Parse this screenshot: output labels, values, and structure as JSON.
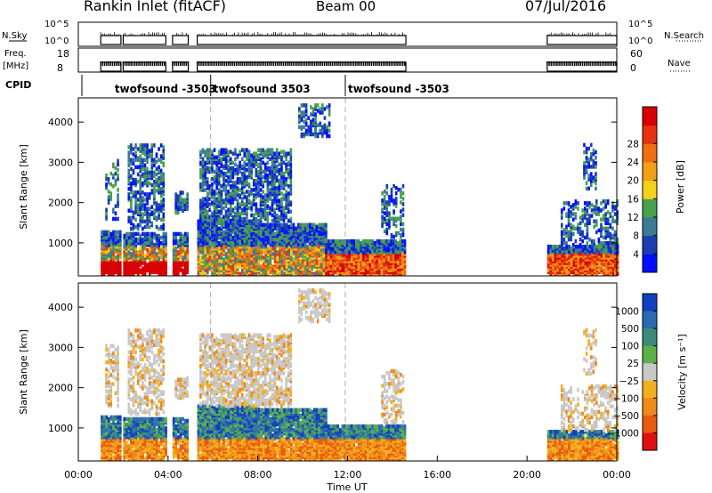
{
  "header": {
    "site": "Rankin Inlet (fitACF)",
    "beam": "Beam 00",
    "date": "07/Jul/2016"
  },
  "status_panels": {
    "nsky_label": "N.Sky",
    "nsky_ticks": [
      "10^5",
      "10^0"
    ],
    "nsearch_label": "N.Search",
    "nsearch_ticks": [
      "10^5",
      "10^0"
    ],
    "freq_label": "Freq.",
    "freq_unit": "[MHz]",
    "freq_ticks": [
      "18",
      "8"
    ],
    "nave_label": "Nave",
    "nave_ticks": [
      "60",
      "0"
    ],
    "cpid_label": "CPID",
    "cpid_segments": [
      {
        "start_hour": 1.5,
        "end_hour": 5.9,
        "label": "twofsound -3503"
      },
      {
        "start_hour": 5.9,
        "end_hour": 11.9,
        "label": "twofsound 3503"
      },
      {
        "start_hour": 11.9,
        "end_hour": 24.0,
        "label": "twofsound -3503"
      }
    ]
  },
  "chart_data": [
    {
      "type": "heatmap",
      "name": "power",
      "ylabel": "Slant Range [km]",
      "yticks": [
        "1000",
        "2000",
        "3000",
        "4000"
      ],
      "ylim": [
        180,
        4600
      ],
      "xlim": [
        0,
        24
      ],
      "colorbar_label": "Power [dB]",
      "colorbar_ticks": [
        "4",
        "8",
        "12",
        "16",
        "20",
        "24",
        "28"
      ],
      "colorbar_colors": [
        "#0010ff",
        "#1a3fb0",
        "#3c7a96",
        "#49a04a",
        "#f2d21a",
        "#f2a018",
        "#ee6e10",
        "#e83210",
        "#d80000"
      ],
      "data_windows_hours": [
        [
          1.0,
          1.9
        ],
        [
          2.0,
          3.9
        ],
        [
          4.2,
          4.9
        ],
        [
          5.3,
          14.6
        ],
        [
          20.9,
          24.0
        ]
      ]
    },
    {
      "type": "heatmap",
      "name": "velocity",
      "ylabel": "Slant Range [km]",
      "yticks": [
        "1000",
        "2000",
        "3000",
        "4000"
      ],
      "ylim": [
        180,
        4600
      ],
      "xlim": [
        0,
        24
      ],
      "xticks": [
        "00:00",
        "04:00",
        "08:00",
        "12:00",
        "16:00",
        "20:00",
        "00:00"
      ],
      "xlabel": "Time UT",
      "colorbar_label": "Velocity [m s⁻¹]",
      "colorbar_ticks": [
        "1000",
        "500",
        "100",
        "25",
        "−25",
        "−100",
        "−500",
        "−1000"
      ],
      "colorbar_colors": [
        "#1040c0",
        "#2a6ab0",
        "#3e8a7c",
        "#5cb04a",
        "#c8c8c8",
        "#f2b020",
        "#ee8a18",
        "#e85a10",
        "#e01010"
      ],
      "data_windows_hours": [
        [
          1.0,
          1.9
        ],
        [
          2.0,
          3.9
        ],
        [
          4.2,
          4.9
        ],
        [
          5.3,
          14.6
        ],
        [
          20.9,
          24.0
        ]
      ]
    }
  ]
}
